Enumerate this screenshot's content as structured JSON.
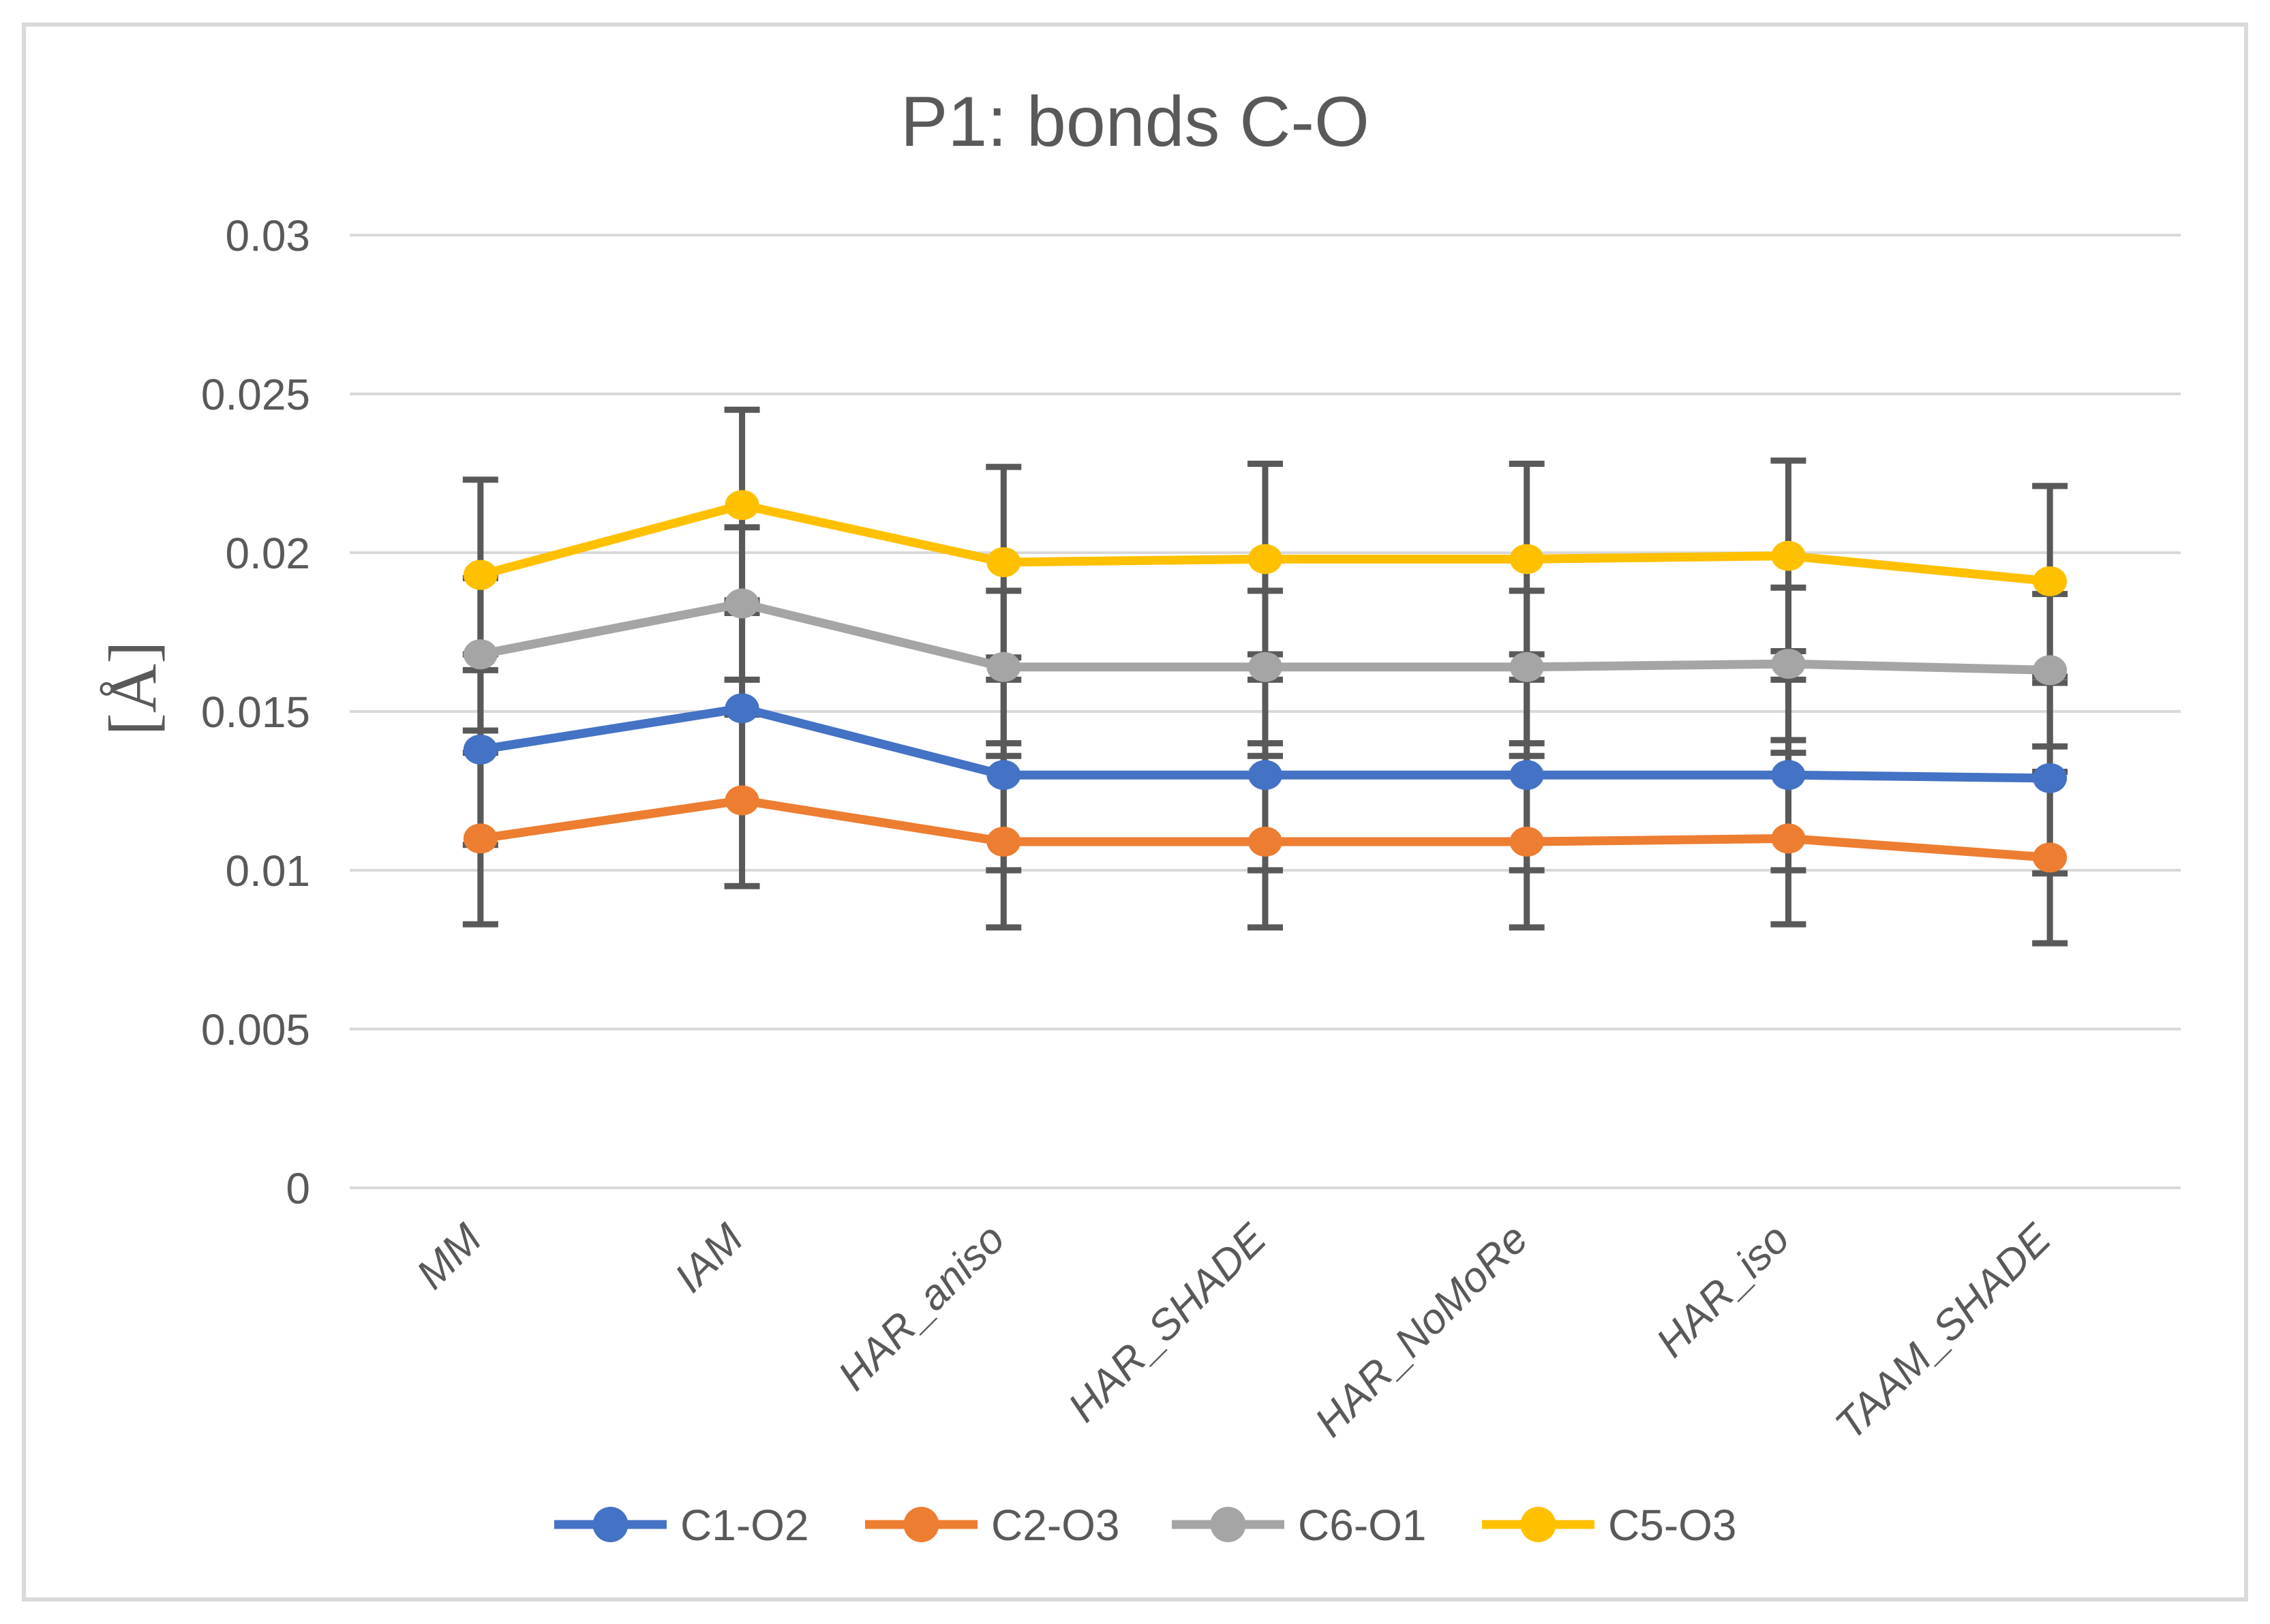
{
  "frame": {
    "border_color": "#D9D9D9",
    "background": "#FFFFFF"
  },
  "chart_data": {
    "type": "line",
    "title": "P1: bonds C-O",
    "xlabel": "",
    "ylabel": "[Å]",
    "categories": [
      "MM",
      "IAM",
      "HAR_aniso",
      "HAR_SHADE",
      "HAR_NoMoRe",
      "HAR_iso",
      "TAAM_SHADE"
    ],
    "y_ticks": {
      "values": [
        0,
        0.005,
        0.01,
        0.015,
        0.02,
        0.025,
        0.03
      ],
      "labels": [
        "0",
        "0.005",
        "0.01",
        "0.015",
        "0.02",
        "0.025",
        "0.03"
      ]
    },
    "ylim": [
      0,
      0.03
    ],
    "grid": "horizontal",
    "gridline_color": "#D9D9D9",
    "text_color": "#595959",
    "error_bar_color": "#595959",
    "legend_position": "bottom",
    "series": [
      {
        "name": "C1-O2",
        "color": "#4472C4",
        "values": [
          0.0138,
          0.0151,
          0.013,
          0.013,
          0.013,
          0.013,
          0.0129
        ],
        "error": 0.003
      },
      {
        "name": "C2-O3",
        "color": "#ED7D31",
        "values": [
          0.011,
          0.0122,
          0.0109,
          0.0109,
          0.0109,
          0.011,
          0.0104
        ],
        "error": 0.0027
      },
      {
        "name": "C6-O1",
        "color": "#A5A5A5",
        "values": [
          0.0168,
          0.0184,
          0.0164,
          0.0164,
          0.0164,
          0.0165,
          0.0163
        ],
        "error": 0.0024
      },
      {
        "name": "C5-O3",
        "color": "#FFC000",
        "values": [
          0.0193,
          0.0215,
          0.0197,
          0.0198,
          0.0198,
          0.0199,
          0.0191
        ],
        "error": 0.003
      }
    ]
  }
}
